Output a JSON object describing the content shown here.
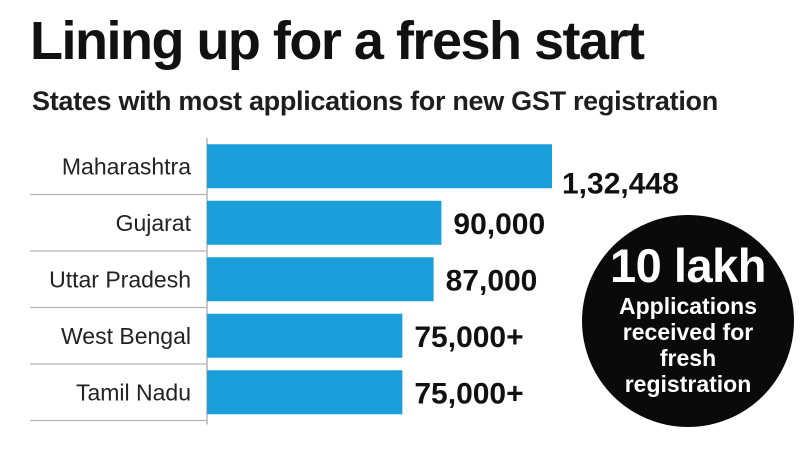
{
  "header": {
    "title": "Lining up for a fresh start",
    "subtitle": "States with most applications for new GST registration"
  },
  "callout": {
    "value": "10 lakh",
    "text": "Applications received for fresh registration"
  },
  "colors": {
    "bar": "#1a9fdb",
    "text": "#111111",
    "divider": "#b5b5b5",
    "callout_bg": "#0a0a0a"
  },
  "chart_data": {
    "type": "bar",
    "orientation": "horizontal",
    "title": "Lining up for a fresh start",
    "subtitle": "States with most applications for new GST registration",
    "categories": [
      "Maharashtra",
      "Gujarat",
      "Uttar Pradesh",
      "West Bengal",
      "Tamil Nadu"
    ],
    "values": [
      132448,
      90000,
      87000,
      75000,
      75000
    ],
    "value_labels": [
      "1,32,448",
      "90,000",
      "87,000",
      "75,000+",
      "75,000+"
    ],
    "xlim": [
      0,
      132448
    ],
    "grid": false,
    "legend": "none"
  }
}
